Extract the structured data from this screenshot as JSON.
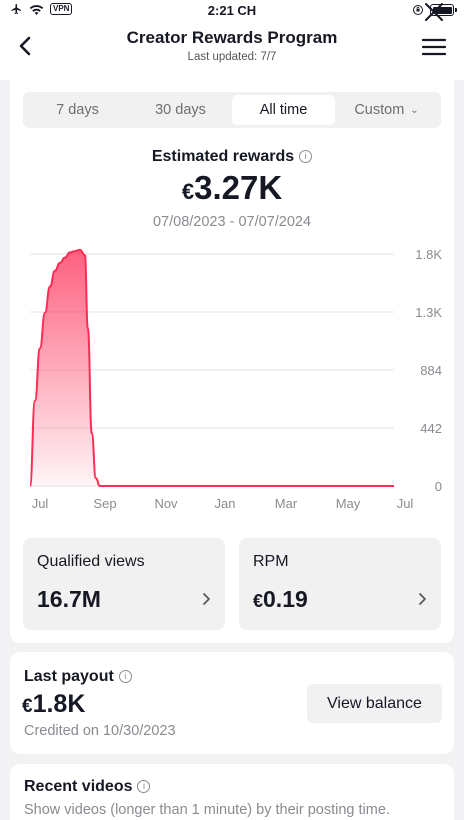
{
  "status_bar": {
    "vpn": "VPN",
    "time": "2:21 CH"
  },
  "header": {
    "title": "Creator Rewards Program",
    "subtitle": "Last updated: 7/7"
  },
  "tabs": [
    {
      "label": "7 days",
      "active": false
    },
    {
      "label": "30 days",
      "active": false
    },
    {
      "label": "All time",
      "active": true
    },
    {
      "label": "Custom",
      "active": false
    }
  ],
  "estimated": {
    "title": "Estimated rewards",
    "currency": "€",
    "value": "3.27K",
    "range": "07/08/2023 - 07/07/2024"
  },
  "chart_data": {
    "type": "area",
    "x_tick_labels": [
      "Jul",
      "Sep",
      "Nov",
      "Jan",
      "Mar",
      "May",
      "Jul"
    ],
    "y_tick_labels": [
      "1.8K",
      "1.3K",
      "884",
      "442",
      "0"
    ],
    "ylim": [
      0,
      1768
    ],
    "series": [
      {
        "x_days": [
          0,
          5,
          10,
          15,
          20,
          25,
          30,
          35,
          40,
          45,
          50,
          55,
          58,
          62,
          66,
          70,
          75,
          365
        ],
        "values": [
          0,
          650,
          1050,
          1320,
          1520,
          1640,
          1700,
          1740,
          1780,
          1790,
          1800,
          1760,
          1200,
          400,
          60,
          0,
          0,
          0
        ]
      }
    ],
    "color": "#fe2c55",
    "grid": true
  },
  "stats": [
    {
      "label": "Qualified views",
      "currency": "",
      "value": "16.7M"
    },
    {
      "label": "RPM",
      "currency": "€",
      "value": "0.19"
    }
  ],
  "payout": {
    "title": "Last payout",
    "currency": "€",
    "value": "1.8K",
    "credited": "Credited on 10/30/2023",
    "button": "View balance"
  },
  "recent": {
    "title": "Recent videos",
    "subtitle": "Show videos (longer than 1 minute) by their posting time."
  },
  "icons": {
    "back": "chevron-left-icon",
    "menu": "hamburger-menu-icon",
    "close": "close-icon",
    "info": "info-icon",
    "chevron": "chevron-right-icon"
  }
}
